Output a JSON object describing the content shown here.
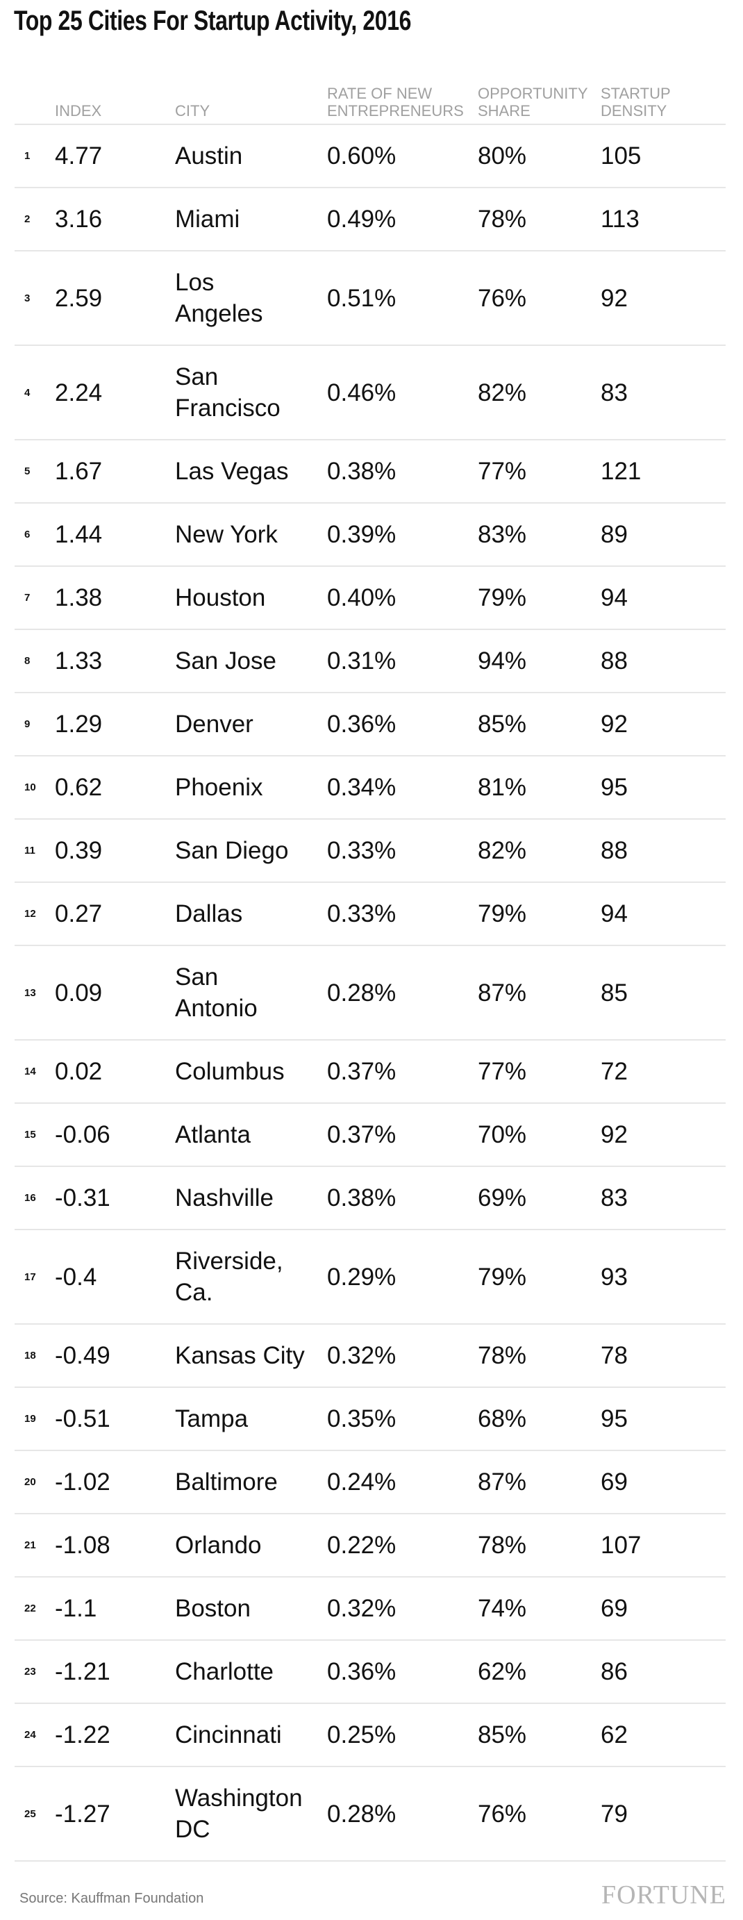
{
  "title": "Top 25 Cities For Startup Activity, 2016",
  "header": {
    "columns": [
      [
        "INDEX"
      ],
      [
        "CITY"
      ],
      [
        "RATE OF NEW",
        "ENTREPRENEURS"
      ],
      [
        "OPPORTUNITY",
        "SHARE"
      ],
      [
        "STARTUP",
        "DENSITY"
      ]
    ]
  },
  "table": {
    "rows": [
      [
        "1",
        "4.77",
        [
          "Austin"
        ],
        "0.60%",
        "80%",
        "105"
      ],
      [
        "2",
        "3.16",
        [
          "Miami"
        ],
        "0.49%",
        "78%",
        "113"
      ],
      [
        "3",
        "2.59",
        [
          "Los",
          "Angeles"
        ],
        "0.51%",
        "76%",
        "92"
      ],
      [
        "4",
        "2.24",
        [
          "San",
          "Francisco"
        ],
        "0.46%",
        "82%",
        "83"
      ],
      [
        "5",
        "1.67",
        [
          "Las Vegas"
        ],
        "0.38%",
        "77%",
        "121"
      ],
      [
        "6",
        "1.44",
        [
          "New York"
        ],
        "0.39%",
        "83%",
        "89"
      ],
      [
        "7",
        "1.38",
        [
          "Houston"
        ],
        "0.40%",
        "79%",
        "94"
      ],
      [
        "8",
        "1.33",
        [
          "San Jose"
        ],
        "0.31%",
        "94%",
        "88"
      ],
      [
        "9",
        "1.29",
        [
          "Denver"
        ],
        "0.36%",
        "85%",
        "92"
      ],
      [
        "10",
        "0.62",
        [
          "Phoenix"
        ],
        "0.34%",
        "81%",
        "95"
      ],
      [
        "11",
        "0.39",
        [
          "San Diego"
        ],
        "0.33%",
        "82%",
        "88"
      ],
      [
        "12",
        "0.27",
        [
          "Dallas"
        ],
        "0.33%",
        "79%",
        "94"
      ],
      [
        "13",
        "0.09",
        [
          "San",
          "Antonio"
        ],
        "0.28%",
        "87%",
        "85"
      ],
      [
        "14",
        "0.02",
        [
          "Columbus"
        ],
        "0.37%",
        "77%",
        "72"
      ],
      [
        "15",
        "-0.06",
        [
          "Atlanta"
        ],
        "0.37%",
        "70%",
        "92"
      ],
      [
        "16",
        "-0.31",
        [
          "Nashville"
        ],
        "0.38%",
        "69%",
        "83"
      ],
      [
        "17",
        "-0.4",
        [
          "Riverside,",
          "Ca."
        ],
        "0.29%",
        "79%",
        "93"
      ],
      [
        "18",
        "-0.49",
        [
          "Kansas City"
        ],
        "0.32%",
        "78%",
        "78"
      ],
      [
        "19",
        "-0.51",
        [
          "Tampa"
        ],
        "0.35%",
        "68%",
        "95"
      ],
      [
        "20",
        "-1.02",
        [
          "Baltimore"
        ],
        "0.24%",
        "87%",
        "69"
      ],
      [
        "21",
        "-1.08",
        [
          "Orlando"
        ],
        "0.22%",
        "78%",
        "107"
      ],
      [
        "22",
        "-1.1",
        [
          "Boston"
        ],
        "0.32%",
        "74%",
        "69"
      ],
      [
        "23",
        "-1.21",
        [
          "Charlotte"
        ],
        "0.36%",
        "62%",
        "86"
      ],
      [
        "24",
        "-1.22",
        [
          "Cincinnati"
        ],
        "0.25%",
        "85%",
        "62"
      ],
      [
        "25",
        "-1.27",
        [
          "Washington",
          "DC"
        ],
        "0.28%",
        "76%",
        "79"
      ]
    ]
  },
  "footer": {
    "source": "Source: Kauffman Foundation",
    "logo": "FORTUNE"
  }
}
